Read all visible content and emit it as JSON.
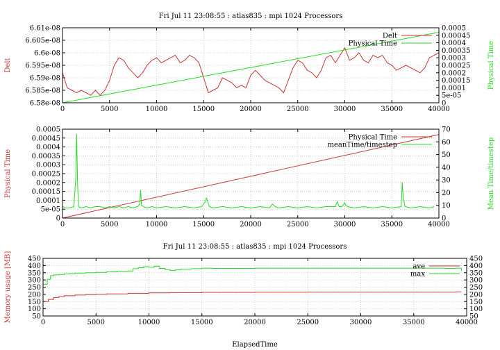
{
  "charts": [
    {
      "title": "Fri Jul 11 23:08:55 : atlas835 : mpi 1024 Processors",
      "xticks": [
        "0",
        "5000",
        "10000",
        "15000",
        "20000",
        "25000",
        "30000",
        "35000",
        "40000"
      ],
      "yticks_left": [
        "6.58e-08",
        "6.585e-08",
        "6.59e-08",
        "6.595e-08",
        "6.6e-08",
        "6.605e-08",
        "6.61e-08"
      ],
      "yticks_right": [
        "0",
        "5e-05",
        "0.0001",
        "0.00015",
        "0.0002",
        "0.00025",
        "0.0003",
        "0.00035",
        "0.0004",
        "0.00045",
        "0.0005"
      ],
      "ylabel_left": "Delt",
      "ylabel_right": "Physical Time",
      "legend": [
        "Delt",
        "Physical Time"
      ]
    },
    {
      "title": "",
      "xticks": [
        "0",
        "5000",
        "10000",
        "15000",
        "20000",
        "25000",
        "30000",
        "35000",
        "40000"
      ],
      "yticks_left": [
        "0",
        "5e-05",
        "0.0001",
        "0.00015",
        "0.0002",
        "0.00025",
        "0.0003",
        "0.00035",
        "0.0004",
        "0.00045",
        "0.0005"
      ],
      "yticks_right": [
        "0",
        "10",
        "20",
        "30",
        "40",
        "50",
        "60",
        "70"
      ],
      "ylabel_left": "Physical Time",
      "ylabel_right": "Mean Time/timestep",
      "legend": [
        "Physical Time",
        "meanTime/timestep"
      ]
    },
    {
      "title": "Fri Jul 11 23:08:55 : atlas835 : mpi 1024 Processors",
      "xticks": [
        "0",
        "5000",
        "10000",
        "15000",
        "20000",
        "25000",
        "30000",
        "35000",
        "40000"
      ],
      "yticks_left": [
        "50",
        "100",
        "150",
        "200",
        "250",
        "300",
        "350",
        "400",
        "450"
      ],
      "yticks_right": [
        "50",
        "100",
        "150",
        "200",
        "250",
        "300",
        "350",
        "400",
        "450"
      ],
      "ylabel_left": "Memory usage [MB]",
      "xlabel": "ElapsedTime",
      "legend": [
        "ave",
        "max"
      ]
    }
  ],
  "chart_data": [
    {
      "type": "line",
      "title": "Fri Jul 11 23:08:55 : atlas835 : mpi 1024 Processors",
      "ylabel": "Delt",
      "y2label": "Physical Time",
      "xlim": [
        0,
        40000
      ],
      "ylim": [
        6.58e-08,
        6.61e-08
      ],
      "y2lim": [
        0,
        0.0005
      ],
      "grid": true,
      "legend_position": "top-right",
      "series": [
        {
          "name": "Delt",
          "color": "#cc3333",
          "axis": "left",
          "x": [
            0,
            500,
            1000,
            1500,
            2000,
            2500,
            3000,
            3500,
            4000,
            4500,
            5000,
            5500,
            6000,
            6500,
            7000,
            7500,
            8000,
            8500,
            9000,
            9500,
            10000,
            10500,
            11000,
            11500,
            12000,
            12500,
            13000,
            13500,
            14000,
            14500,
            15000,
            15500,
            16000,
            16500,
            17000,
            17500,
            18000,
            18500,
            19000,
            19500,
            20000,
            20500,
            21000,
            21500,
            22000,
            22500,
            23000,
            23500,
            24000,
            24500,
            25000,
            25500,
            26000,
            26500,
            27000,
            27500,
            28000,
            28500,
            29000,
            29500,
            30000,
            30500,
            31000,
            31500,
            32000,
            32500,
            33000,
            33500,
            34000,
            34500,
            35000,
            35500,
            36000,
            36500,
            37000,
            37500,
            38000,
            38500,
            39000,
            39500,
            40000
          ],
          "y": [
            6.592e-08,
            6.586e-08,
            6.585e-08,
            6.584e-08,
            6.585e-08,
            6.584e-08,
            6.583e-08,
            6.585e-08,
            6.583e-08,
            6.585e-08,
            6.589e-08,
            6.595e-08,
            6.598e-08,
            6.597e-08,
            6.594e-08,
            6.592e-08,
            6.59e-08,
            6.592e-08,
            6.595e-08,
            6.597e-08,
            6.598e-08,
            6.596e-08,
            6.597e-08,
            6.598e-08,
            6.599e-08,
            6.596e-08,
            6.597e-08,
            6.599e-08,
            6.598e-08,
            6.596e-08,
            6.59e-08,
            6.584e-08,
            6.585e-08,
            6.586e-08,
            6.59e-08,
            6.589e-08,
            6.588e-08,
            6.586e-08,
            6.587e-08,
            6.586e-08,
            6.591e-08,
            6.593e-08,
            6.591e-08,
            6.589e-08,
            6.588e-08,
            6.587e-08,
            6.586e-08,
            6.584e-08,
            6.589e-08,
            6.594e-08,
            6.597e-08,
            6.596e-08,
            6.593e-08,
            6.592e-08,
            6.59e-08,
            6.593e-08,
            6.598e-08,
            6.599e-08,
            6.596e-08,
            6.599e-08,
            6.602e-08,
            6.597e-08,
            6.598e-08,
            6.6e-08,
            6.597e-08,
            6.596e-08,
            6.599e-08,
            6.598e-08,
            6.599e-08,
            6.596e-08,
            6.595e-08,
            6.593e-08,
            6.594e-08,
            6.595e-08,
            6.594e-08,
            6.593e-08,
            6.592e-08,
            6.594e-08,
            6.598e-08,
            6.599e-08,
            6.6e-08
          ]
        },
        {
          "name": "Physical Time",
          "color": "#22dd22",
          "axis": "right",
          "x": [
            0,
            40000
          ],
          "y": [
            0,
            0.00047
          ]
        }
      ]
    },
    {
      "type": "line",
      "ylabel": "Physical Time",
      "y2label": "Mean Time/timestep",
      "xlim": [
        0,
        40000
      ],
      "ylim": [
        0,
        0.0005
      ],
      "y2lim": [
        0,
        70
      ],
      "grid": true,
      "legend_position": "top-right",
      "series": [
        {
          "name": "Physical Time",
          "color": "#cc3333",
          "axis": "left",
          "x": [
            0,
            40000
          ],
          "y": [
            0,
            0.00047
          ]
        },
        {
          "name": "meanTime/timestep",
          "color": "#22dd22",
          "axis": "right",
          "x": [
            0,
            400,
            800,
            1200,
            1400,
            1500,
            1600,
            1700,
            2000,
            2500,
            3000,
            3500,
            4000,
            4500,
            5000,
            5500,
            6000,
            6500,
            7000,
            7500,
            8000,
            8200,
            8300,
            8400,
            8600,
            9000,
            9500,
            10000,
            11000,
            12000,
            13000,
            14000,
            14800,
            15200,
            15300,
            15600,
            16000,
            17000,
            18000,
            19000,
            20000,
            21000,
            22000,
            22300,
            22600,
            23000,
            24000,
            25000,
            26000,
            27000,
            28000,
            29000,
            29200,
            29400,
            29700,
            30000,
            30100,
            30300,
            31000,
            32000,
            33000,
            34000,
            35000,
            36000,
            36100,
            36200,
            36400,
            37000,
            38000,
            39000,
            39500
          ],
          "y": [
            9,
            8,
            8,
            9,
            30,
            66,
            28,
            9,
            8,
            9,
            8,
            9,
            9,
            8,
            9,
            8,
            9,
            8,
            9,
            8,
            9,
            11,
            22,
            10,
            9,
            8,
            9,
            8,
            9,
            8,
            9,
            8,
            9,
            13,
            16,
            9,
            8,
            9,
            8,
            9,
            8,
            9,
            8,
            11,
            9,
            8,
            9,
            8,
            9,
            8,
            9,
            9,
            13,
            9,
            9,
            12,
            10,
            9,
            8,
            9,
            8,
            9,
            8,
            9,
            28,
            17,
            9,
            8,
            9,
            8,
            9
          ]
        }
      ]
    },
    {
      "type": "line",
      "title": "Fri Jul 11 23:08:55 : atlas835 : mpi 1024 Processors",
      "xlabel": "ElapsedTime",
      "ylabel": "Memory usage [MB]",
      "xlim": [
        0,
        40000
      ],
      "ylim": [
        50,
        450
      ],
      "y2lim": [
        50,
        450
      ],
      "grid": true,
      "legend_position": "top-right",
      "series": [
        {
          "name": "ave",
          "color": "#cc3333",
          "axis": "left",
          "x": [
            0,
            100,
            500,
            1000,
            1500,
            2000,
            3000,
            4000,
            5000,
            6000,
            8000,
            10000,
            12000,
            15000,
            20000,
            25000,
            30000,
            35000,
            39000,
            39500
          ],
          "y": [
            150,
            150,
            165,
            178,
            185,
            190,
            195,
            198,
            200,
            203,
            207,
            210,
            212,
            214,
            215,
            216,
            216,
            216,
            217,
            217
          ]
        },
        {
          "name": "max",
          "color": "#22dd22",
          "axis": "left",
          "x": [
            0,
            200,
            400,
            700,
            1000,
            1500,
            2000,
            2500,
            3000,
            4000,
            5000,
            6000,
            7000,
            8000,
            8500,
            9000,
            9500,
            10000,
            10500,
            11000,
            11500,
            12000,
            12500,
            13000,
            14000,
            15000,
            16000,
            20000,
            25000,
            30000,
            35000,
            38000,
            39000,
            39500
          ],
          "y": [
            270,
            270,
            305,
            330,
            335,
            338,
            342,
            344,
            348,
            350,
            352,
            356,
            360,
            362,
            378,
            385,
            392,
            388,
            395,
            380,
            372,
            365,
            370,
            375,
            378,
            382,
            380,
            382,
            382,
            382,
            382,
            380,
            382,
            362
          ]
        }
      ]
    }
  ]
}
